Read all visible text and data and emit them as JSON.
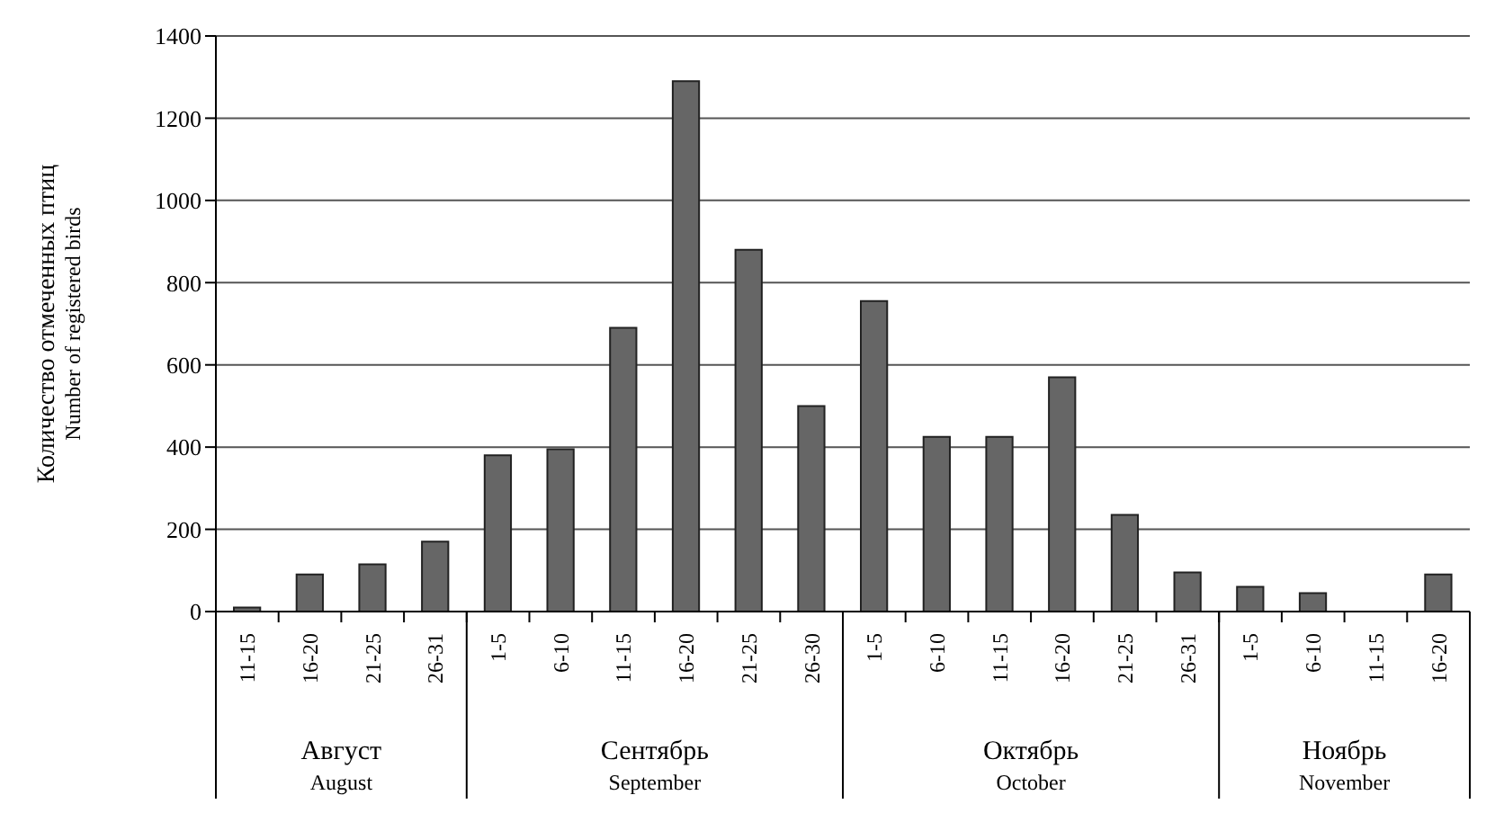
{
  "chart_data": {
    "type": "bar",
    "ylabel": "Количество отмеченных птиц\nNumber of registered birds",
    "categories": [
      "11-15",
      "16-20",
      "21-25",
      "26-31",
      "1-5",
      "6-10",
      "11-15",
      "16-20",
      "21-25",
      "26-30",
      "1-5",
      "6-10",
      "11-15",
      "16-20",
      "21-25",
      "26-31",
      "1-5",
      "6-10",
      "11-15",
      "16-20"
    ],
    "values": [
      10,
      90,
      115,
      170,
      380,
      395,
      690,
      1290,
      880,
      500,
      755,
      425,
      425,
      570,
      235,
      95,
      60,
      45,
      0,
      90
    ],
    "color": "#666666",
    "ylim": [
      0,
      1400
    ],
    "yticks": [
      0,
      200,
      400,
      600,
      800,
      1000,
      1200,
      1400
    ],
    "grid": "y",
    "legend": false,
    "annotations": [
      "Август\nAugust",
      "Сентябрь\nSeptember",
      "Октябрь\nOctober",
      "Ноябрь\nNovember"
    ]
  }
}
